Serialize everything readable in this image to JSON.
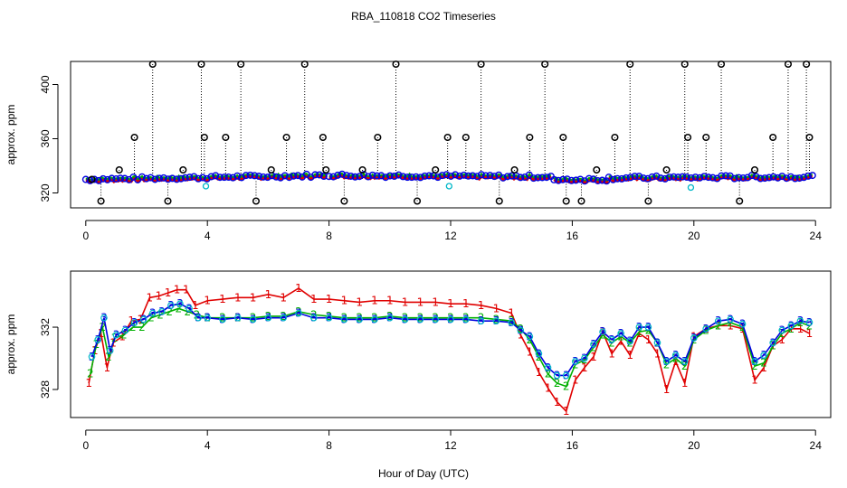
{
  "title": "RBA_110818  CO2 Timeseries",
  "xlabel": "Hour of Day (UTC)",
  "colors": {
    "series1": "#e00000",
    "series2": "#00b000",
    "series3": "#0000e0",
    "flask": "#000000",
    "cyan": "#00b8c8",
    "axis": "#000000"
  },
  "chart_data": [
    {
      "type": "scatter",
      "id": "top",
      "ylabel": "approx. ppm",
      "xlim": [
        -0.5,
        24.5
      ],
      "ylim": [
        309,
        417
      ],
      "xticks": [
        0,
        4,
        8,
        12,
        16,
        20,
        24
      ],
      "yticks": [
        320,
        360,
        400
      ],
      "baseline_segments": [
        {
          "x": [
            0,
            7.9
          ],
          "y": [
            330,
            333
          ]
        },
        {
          "x": [
            8.0,
            15.3
          ],
          "y": [
            333,
            332
          ]
        },
        {
          "x": [
            15.4,
            17.2
          ],
          "y": [
            330,
            330
          ]
        },
        {
          "x": [
            17.2,
            23.9
          ],
          "y": [
            331,
            332
          ]
        }
      ],
      "flask_x": [
        0.2,
        0.5,
        1.1,
        1.6,
        2.2,
        2.7,
        3.2,
        3.8,
        3.9,
        4.6,
        5.1,
        5.6,
        6.1,
        6.6,
        7.2,
        7.8,
        7.9,
        8.5,
        9.1,
        9.6,
        10.2,
        10.9,
        11.5,
        11.9,
        12.5,
        13.0,
        13.6,
        14.1,
        14.6,
        15.1,
        15.7,
        15.8,
        16.3,
        16.8,
        17.4,
        17.9,
        18.5,
        19.1,
        19.7,
        19.8,
        20.4,
        20.9,
        21.5,
        22.0,
        22.6,
        23.1,
        23.7,
        23.8
      ],
      "flask_y": [
        330,
        314,
        337,
        361,
        415,
        314,
        337,
        415,
        361,
        361,
        415,
        314,
        337,
        361,
        415,
        361,
        337,
        314,
        337,
        361,
        415,
        314,
        337,
        361,
        361,
        415,
        314,
        337,
        361,
        415,
        361,
        314,
        314,
        337,
        361,
        415,
        314,
        337,
        415,
        361,
        361,
        415,
        314,
        337,
        361,
        415,
        415,
        361
      ],
      "cyan_x": [
        3.95,
        11.95,
        19.9
      ],
      "cyan_y": [
        325,
        325,
        324
      ]
    },
    {
      "type": "line",
      "id": "bottom",
      "ylabel": "approx. ppm",
      "xlim": [
        -0.5,
        24.5
      ],
      "ylim": [
        326.2,
        335.6
      ],
      "xticks": [
        0,
        4,
        8,
        12,
        16,
        20,
        24
      ],
      "yticks": [
        328,
        332
      ],
      "series": [
        {
          "name": "1",
          "color_key": "series1",
          "symbol": "1",
          "x": [
            0.1,
            0.3,
            0.5,
            0.7,
            0.9,
            1.2,
            1.5,
            1.8,
            2.1,
            2.4,
            2.7,
            3.0,
            3.3,
            3.6,
            4.0,
            4.5,
            5.0,
            5.5,
            6.0,
            6.5,
            7.0,
            7.5,
            8.0,
            8.5,
            9.0,
            9.5,
            10.0,
            10.5,
            11.0,
            11.5,
            12.0,
            12.5,
            13.0,
            13.5,
            14.0,
            14.3,
            14.6,
            14.9,
            15.2,
            15.5,
            15.8,
            16.1,
            16.4,
            16.7,
            17.0,
            17.3,
            17.6,
            17.9,
            18.2,
            18.5,
            18.8,
            19.1,
            19.4,
            19.7,
            20.0,
            20.4,
            20.8,
            21.2,
            21.6,
            22.0,
            22.3,
            22.6,
            22.9,
            23.2,
            23.5,
            23.8
          ],
          "y": [
            328.4,
            330.5,
            331.6,
            329.4,
            331.0,
            331.4,
            332.4,
            332.5,
            333.9,
            334.0,
            334.2,
            334.4,
            334.4,
            333.4,
            333.7,
            333.8,
            333.9,
            333.9,
            334.1,
            333.9,
            334.5,
            333.8,
            333.8,
            333.7,
            333.6,
            333.7,
            333.7,
            333.6,
            333.6,
            333.6,
            333.5,
            333.5,
            333.4,
            333.2,
            332.9,
            331.5,
            330.4,
            329.1,
            328.1,
            327.2,
            326.6,
            328.6,
            329.4,
            330.1,
            331.7,
            330.3,
            331.1,
            330.2,
            331.6,
            331.2,
            330.3,
            328.0,
            329.8,
            328.4,
            331.4,
            331.9,
            332.1,
            332.1,
            331.9,
            328.6,
            329.4,
            330.8,
            331.2,
            331.9,
            331.9,
            331.6
          ]
        },
        {
          "name": "2",
          "color_key": "series2",
          "symbol": "2",
          "x": [
            0.15,
            0.35,
            0.55,
            0.75,
            0.95,
            1.25,
            1.55,
            1.85,
            2.15,
            2.45,
            2.75,
            3.05,
            3.35,
            3.65,
            4.0,
            4.5,
            5.0,
            5.5,
            6.0,
            6.5,
            7.0,
            7.5,
            8.0,
            8.5,
            9.0,
            9.5,
            10.0,
            10.5,
            11.0,
            11.5,
            12.0,
            12.5,
            13.0,
            13.5,
            14.0,
            14.3,
            14.6,
            14.9,
            15.2,
            15.5,
            15.8,
            16.1,
            16.4,
            16.7,
            17.0,
            17.3,
            17.6,
            17.9,
            18.2,
            18.5,
            18.8,
            19.1,
            19.4,
            19.7,
            20.0,
            20.4,
            20.8,
            21.2,
            21.6,
            22.0,
            22.3,
            22.6,
            22.9,
            23.2,
            23.5,
            23.8
          ],
          "y": [
            329.0,
            330.9,
            332.0,
            330.1,
            331.3,
            331.5,
            332.0,
            332.0,
            332.6,
            332.8,
            333.0,
            333.2,
            333.0,
            332.8,
            332.6,
            332.6,
            332.6,
            332.6,
            332.7,
            332.7,
            333.0,
            332.8,
            332.7,
            332.6,
            332.6,
            332.6,
            332.7,
            332.6,
            332.6,
            332.6,
            332.6,
            332.6,
            332.6,
            332.5,
            332.4,
            331.9,
            331.2,
            330.1,
            329.0,
            328.4,
            328.2,
            329.6,
            329.9,
            330.7,
            331.5,
            331.0,
            331.4,
            331.0,
            331.7,
            331.8,
            331.0,
            329.6,
            330.0,
            329.5,
            331.2,
            331.8,
            332.1,
            332.3,
            332.0,
            329.5,
            329.7,
            330.8,
            331.6,
            331.9,
            332.3,
            332.1
          ]
        },
        {
          "name": "3",
          "color_key": "series3",
          "symbol": "3",
          "x": [
            0.2,
            0.4,
            0.6,
            0.8,
            1.0,
            1.3,
            1.6,
            1.9,
            2.2,
            2.5,
            2.8,
            3.1,
            3.4,
            3.7,
            4.0,
            4.5,
            5.0,
            5.5,
            6.0,
            6.5,
            7.0,
            7.5,
            8.0,
            8.5,
            9.0,
            9.5,
            10.0,
            10.5,
            11.0,
            11.5,
            12.0,
            12.5,
            13.0,
            13.5,
            14.0,
            14.3,
            14.6,
            14.9,
            15.2,
            15.5,
            15.8,
            16.1,
            16.4,
            16.7,
            17.0,
            17.3,
            17.6,
            17.9,
            18.2,
            18.5,
            18.8,
            19.1,
            19.4,
            19.7,
            20.0,
            20.4,
            20.8,
            21.2,
            21.6,
            22.0,
            22.3,
            22.6,
            22.9,
            23.2,
            23.5,
            23.8
          ],
          "y": [
            330.1,
            331.2,
            332.6,
            330.5,
            331.5,
            331.8,
            332.3,
            332.5,
            332.9,
            333.0,
            333.4,
            333.5,
            333.2,
            332.6,
            332.6,
            332.5,
            332.6,
            332.5,
            332.6,
            332.6,
            332.9,
            332.6,
            332.6,
            332.5,
            332.5,
            332.5,
            332.6,
            332.5,
            332.5,
            332.5,
            332.5,
            332.5,
            332.4,
            332.4,
            332.3,
            331.8,
            331.4,
            330.3,
            329.4,
            328.9,
            328.9,
            329.8,
            330.0,
            330.9,
            331.7,
            331.2,
            331.6,
            331.1,
            332.0,
            332.0,
            331.0,
            329.8,
            330.2,
            329.8,
            331.3,
            331.9,
            332.4,
            332.5,
            332.2,
            329.8,
            330.2,
            331.0,
            331.8,
            332.1,
            332.4,
            332.3
          ]
        }
      ]
    }
  ]
}
